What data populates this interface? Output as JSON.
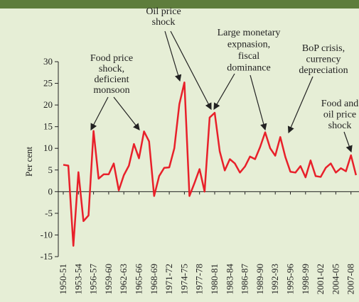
{
  "chart_data": {
    "type": "line",
    "y_label": "Per cent",
    "categories": [
      "1950-51",
      null,
      null,
      "1953-54",
      null,
      null,
      "1956-57",
      null,
      null,
      "1959-60",
      null,
      null,
      "1962-63",
      null,
      null,
      "1965-66",
      null,
      null,
      "1968-69",
      null,
      null,
      "1971-72",
      null,
      null,
      "1974-75",
      null,
      null,
      "1977-78",
      null,
      null,
      "1980-81",
      null,
      null,
      "1983-84",
      null,
      null,
      "1986-87",
      null,
      null,
      "1989-90",
      null,
      null,
      "1992-93",
      null,
      null,
      "1995-96",
      null,
      null,
      "1998-99",
      null,
      null,
      "2001-02",
      null,
      null,
      "2004-05",
      null,
      null,
      "2007-08",
      null
    ],
    "series": [
      {
        "color": "#e8202a",
        "values": [
          6.2,
          6.0,
          -12.5,
          4.5,
          -6.8,
          -5.5,
          14,
          3,
          4,
          4,
          6.5,
          0.3,
          3.8,
          6,
          11,
          7.7,
          13.9,
          11.6,
          -1,
          3.6,
          5.5,
          5.6,
          10,
          20.2,
          25.2,
          -1,
          2,
          5.2,
          0,
          17.1,
          18.2,
          9.3,
          4.9,
          7.5,
          6.5,
          4.4,
          5.8,
          8.1,
          7.5,
          10.3,
          13.7,
          10,
          8.3,
          12.6,
          8,
          4.6,
          4.4,
          5.9,
          3.3,
          7.2,
          3.6,
          3.4,
          5.5,
          6.5,
          4.4,
          5.4,
          4.7,
          8.4,
          3.8
        ]
      }
    ],
    "ylim": [
      -15,
      30
    ],
    "yticks": [
      -15,
      -10,
      -5,
      0,
      5,
      10,
      15,
      20,
      25,
      30
    ],
    "annotations": [
      [
        "Food price",
        "shock,",
        "deficient",
        "monsoon"
      ],
      [
        "Oil price",
        "shock"
      ],
      [
        "Large monetary",
        "expnasion,",
        "fiscal",
        "dominance"
      ],
      [
        "BoP crisis,",
        "currency",
        "depreciation"
      ],
      [
        "Food and",
        "oil price",
        "shock"
      ]
    ]
  }
}
